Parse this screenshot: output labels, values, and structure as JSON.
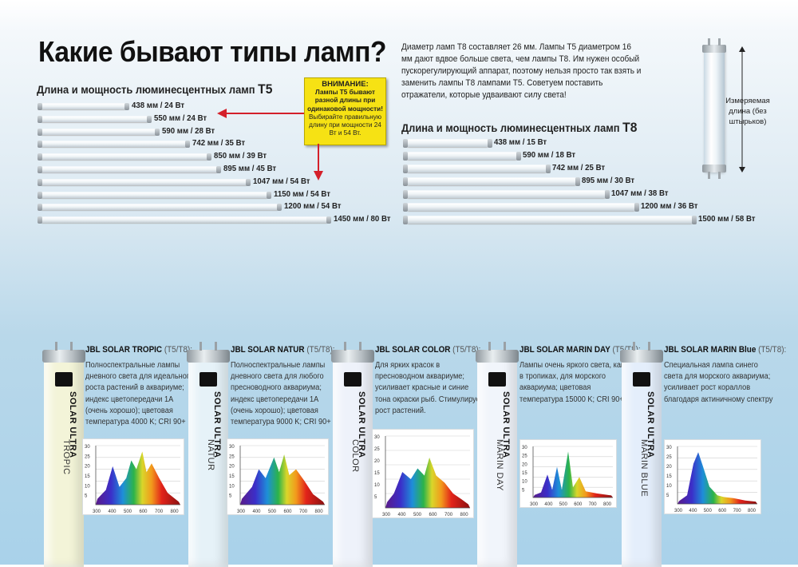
{
  "title": "Какие бывают типы ламп?",
  "t5": {
    "heading": "Длина и мощность люминесцентных ламп",
    "heading_code": "T5",
    "lamps": [
      {
        "length_mm": 438,
        "label": "438 мм / 24 Вт"
      },
      {
        "length_mm": 550,
        "label": "550 мм / 24 Вт"
      },
      {
        "length_mm": 590,
        "label": "590 мм / 28 Вт"
      },
      {
        "length_mm": 742,
        "label": "742 мм / 35 Вт"
      },
      {
        "length_mm": 850,
        "label": "850 мм / 39 Вт"
      },
      {
        "length_mm": 895,
        "label": "895 мм / 45 Вт"
      },
      {
        "length_mm": 1047,
        "label": "1047 мм / 54 Вт"
      },
      {
        "length_mm": 1150,
        "label": "1150 мм / 54 Вт"
      },
      {
        "length_mm": 1200,
        "label": "1200 мм / 54 Вт"
      },
      {
        "length_mm": 1450,
        "label": "1450 мм / 80 Вт"
      }
    ]
  },
  "warning": {
    "heading": "ВНИМАНИЕ:",
    "bold_text": "Лампы T5 бывают разной длины при одинаковой мощности!",
    "text": "Выбирайте правильную длину при мощности 24 Вт и 54 Вт."
  },
  "intro_text": "Диаметр ламп T8 составляет 26 мм. Лампы T5 диаметром 16 мм дают вдвое больше света, чем лампы T8. Им нужен особый пускорегулирующий аппарат, поэтому нельзя просто так взять и заменить лампы T8 лампами T5. Советуем поставить отражатели, которые удваивают силу света!",
  "t8": {
    "heading": "Длина и мощность люминесцентных ламп",
    "heading_code": "T8",
    "lamps": [
      {
        "length_mm": 438,
        "label": "438 мм / 15 Вт"
      },
      {
        "length_mm": 590,
        "label": "590 мм / 18 Вт"
      },
      {
        "length_mm": 742,
        "label": "742 мм / 25 Вт"
      },
      {
        "length_mm": 895,
        "label": "895 мм / 30 Вт"
      },
      {
        "length_mm": 1047,
        "label": "1047 мм / 38 Вт"
      },
      {
        "length_mm": 1200,
        "label": "1200 мм / 36 Вт"
      },
      {
        "length_mm": 1500,
        "label": "1500 мм / 58 Вт"
      }
    ]
  },
  "measure_caption": "Измеряемая длина (без штырьков)",
  "products": [
    {
      "title": "JBL SOLAR TROPIC",
      "type": "(T5/T8):",
      "description": "Полноспектральные лампы дневного света для идеального роста растений в аквариуме; индекс цветопередачи 1A (очень хорошо); цветовая температура 4000 K; CRI 90+",
      "lamp_brand": "SOLAR ULTRA",
      "lamp_name": "TROPIC",
      "glass_color": "#f3f4d8",
      "spectrum_y_ticks": [
        "30",
        "25",
        "20",
        "15",
        "10",
        "5"
      ],
      "spectrum_x_ticks": [
        "300",
        "400",
        "500",
        "600",
        "700",
        "800"
      ]
    },
    {
      "title": "JBL SOLAR NATUR",
      "type": "(T5/T8):",
      "description": "Полноспектральные лампы дневного света для любого пресноводного аквариума; индекс цветопередачи 1A (очень хорошо); цветовая температура 9000 K; CRI 90+",
      "lamp_brand": "SOLAR ULTRA",
      "lamp_name": "NATUR",
      "glass_color": "#e6f2f8",
      "spectrum_y_ticks": [
        "30",
        "25",
        "20",
        "15",
        "10",
        "5"
      ],
      "spectrum_x_ticks": [
        "300",
        "400",
        "500",
        "600",
        "700",
        "800"
      ]
    },
    {
      "title": "JBL SOLAR COLOR",
      "type": "(T5/T8):",
      "description": "Для ярких красок в пресноводном аквариуме; усиливает красные и синие тона окраски рыб. Стимулирует рост растений.",
      "lamp_brand": "SOLAR ULTRA",
      "lamp_name": "COLOR",
      "glass_color": "#eef2fa",
      "spectrum_y_ticks": [
        "30",
        "25",
        "20",
        "15",
        "10",
        "5"
      ],
      "spectrum_x_ticks": [
        "300",
        "400",
        "500",
        "600",
        "700",
        "800"
      ]
    },
    {
      "title": "JBL SOLAR MARIN DAY",
      "type": "(T5/T8):",
      "description": "Лампы очень яркого света, как в тропиках, для морского аквариума; цветовая температура 15000 K; CRI 90+",
      "lamp_brand": "SOLAR ULTRA",
      "lamp_name": "MARIN DAY",
      "glass_color": "#f1f5fb",
      "spectrum_y_ticks": [
        "30",
        "25",
        "20",
        "15",
        "10",
        "5"
      ],
      "spectrum_x_ticks": [
        "300",
        "400",
        "500",
        "600",
        "700",
        "800"
      ]
    },
    {
      "title": "JBL SOLAR MARIN Blue",
      "type": "(T5/T8):",
      "description": "Специальная лампа синего света для морского аквариума; усиливает рост кораллов благодаря актиничному спектру",
      "lamp_brand": "SOLAR ULTRA",
      "lamp_name": "MARIN BLUE",
      "glass_color": "#e4eefb",
      "spectrum_y_ticks": [
        "30",
        "25",
        "20",
        "15",
        "10",
        "5"
      ],
      "spectrum_x_ticks": [
        "300",
        "400",
        "500",
        "600",
        "700",
        "800"
      ]
    }
  ]
}
